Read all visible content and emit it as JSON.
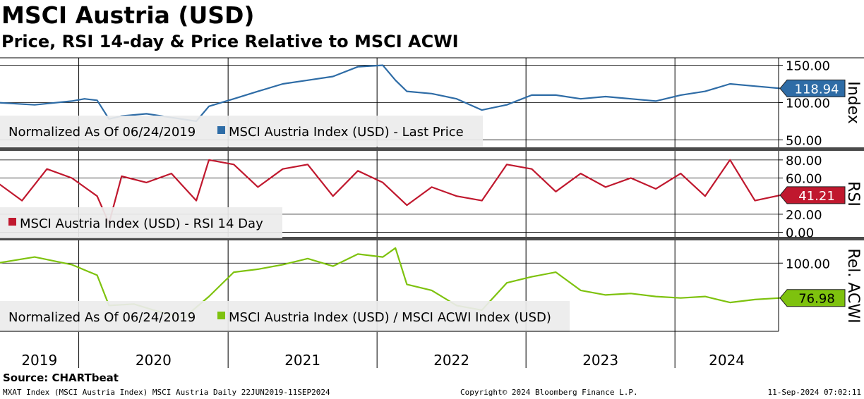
{
  "header": {
    "title": "MSCI Austria (USD)",
    "subtitle": "Price, RSI 14-day & Price Relative to MSCI ACWI"
  },
  "footer": {
    "source": "Source: CHARTbeat",
    "left": "MXAT Index (MSCI Austria Index) MSCI Austria  Daily 22JUN2019-11SEP2024",
    "center": "Copyright© 2024 Bloomberg Finance L.P.",
    "right": "11-Sep-2024 07:02:11"
  },
  "colors": {
    "price": "#2e6ca6",
    "rsi": "#c0182e",
    "relative": "#7ec20e",
    "legend_bg": "#ececec",
    "grid": "#000000"
  },
  "chart_data": [
    {
      "type": "line",
      "panel": "price",
      "axis_title": "Index",
      "ylim": [
        40,
        160
      ],
      "yticks": [
        50,
        100,
        150
      ],
      "ytick_labels": [
        "50.00",
        "100.00",
        "150.00"
      ],
      "last_value_label": "118.94",
      "legend_note": "Normalized As Of 06/24/2019",
      "series": [
        {
          "name": "MSCI Austria Index (USD) - Last Price",
          "x": [
            "2019-06",
            "2019-09",
            "2019-12",
            "2020-01",
            "2020-02",
            "2020-03",
            "2020-04",
            "2020-06",
            "2020-08",
            "2020-10",
            "2020-11",
            "2021-01",
            "2021-03",
            "2021-05",
            "2021-07",
            "2021-09",
            "2021-11",
            "2022-01",
            "2022-02",
            "2022-03",
            "2022-05",
            "2022-07",
            "2022-09",
            "2022-11",
            "2023-01",
            "2023-03",
            "2023-05",
            "2023-07",
            "2023-09",
            "2023-11",
            "2024-01",
            "2024-03",
            "2024-05",
            "2024-07",
            "2024-09"
          ],
          "values": [
            100,
            97,
            102,
            105,
            103,
            78,
            82,
            85,
            80,
            75,
            95,
            105,
            115,
            125,
            130,
            135,
            148,
            150,
            130,
            115,
            112,
            105,
            90,
            97,
            110,
            110,
            105,
            108,
            105,
            102,
            110,
            115,
            125,
            122,
            119
          ]
        }
      ]
    },
    {
      "type": "line",
      "panel": "rsi",
      "axis_title": "RSI",
      "ylim": [
        -5,
        90
      ],
      "yticks": [
        0,
        20,
        60,
        80
      ],
      "ytick_labels": [
        "0.00",
        "20.00",
        "60.00",
        "80.00"
      ],
      "last_value_label": "41.21",
      "series": [
        {
          "name": "MSCI Austria Index (USD) - RSI 14 Day",
          "x": [
            "2019-06",
            "2019-08",
            "2019-10",
            "2019-12",
            "2020-02",
            "2020-03",
            "2020-04",
            "2020-06",
            "2020-08",
            "2020-10",
            "2020-11",
            "2021-01",
            "2021-03",
            "2021-05",
            "2021-07",
            "2021-09",
            "2021-11",
            "2022-01",
            "2022-03",
            "2022-05",
            "2022-07",
            "2022-09",
            "2022-11",
            "2023-01",
            "2023-03",
            "2023-05",
            "2023-07",
            "2023-09",
            "2023-11",
            "2024-01",
            "2024-03",
            "2024-05",
            "2024-07",
            "2024-09"
          ],
          "values": [
            55,
            35,
            70,
            60,
            40,
            10,
            62,
            55,
            65,
            35,
            80,
            75,
            50,
            70,
            75,
            40,
            68,
            55,
            30,
            50,
            40,
            35,
            75,
            70,
            45,
            65,
            50,
            60,
            48,
            65,
            40,
            80,
            35,
            41
          ]
        }
      ]
    },
    {
      "type": "line",
      "panel": "relative",
      "axis_title": "Rel. ACWI",
      "ylim": [
        55,
        115
      ],
      "yticks": [
        100
      ],
      "ytick_labels": [
        "100.00"
      ],
      "last_value_label": "76.98",
      "legend_note": "Normalized As Of 06/24/2019",
      "series": [
        {
          "name": "MSCI Austria Index (USD) / MSCI ACWI Index (USD)",
          "x": [
            "2019-06",
            "2019-09",
            "2019-12",
            "2020-02",
            "2020-03",
            "2020-05",
            "2020-07",
            "2020-09",
            "2020-11",
            "2021-01",
            "2021-03",
            "2021-05",
            "2021-07",
            "2021-09",
            "2021-11",
            "2022-01",
            "2022-02",
            "2022-03",
            "2022-05",
            "2022-07",
            "2022-09",
            "2022-11",
            "2023-01",
            "2023-03",
            "2023-05",
            "2023-07",
            "2023-09",
            "2023-11",
            "2024-01",
            "2024-03",
            "2024-05",
            "2024-07",
            "2024-09"
          ],
          "values": [
            100,
            104,
            99,
            92,
            72,
            73,
            68,
            64,
            78,
            94,
            96,
            99,
            103,
            98,
            106,
            104,
            110,
            86,
            82,
            72,
            69,
            87,
            91,
            94,
            82,
            79,
            80,
            78,
            77,
            78,
            74,
            76,
            77
          ]
        }
      ]
    }
  ],
  "xaxis": {
    "start": "2019-06-22",
    "end": "2024-09-11",
    "year_labels": [
      "2019",
      "2020",
      "2021",
      "2022",
      "2023",
      "2024"
    ]
  }
}
